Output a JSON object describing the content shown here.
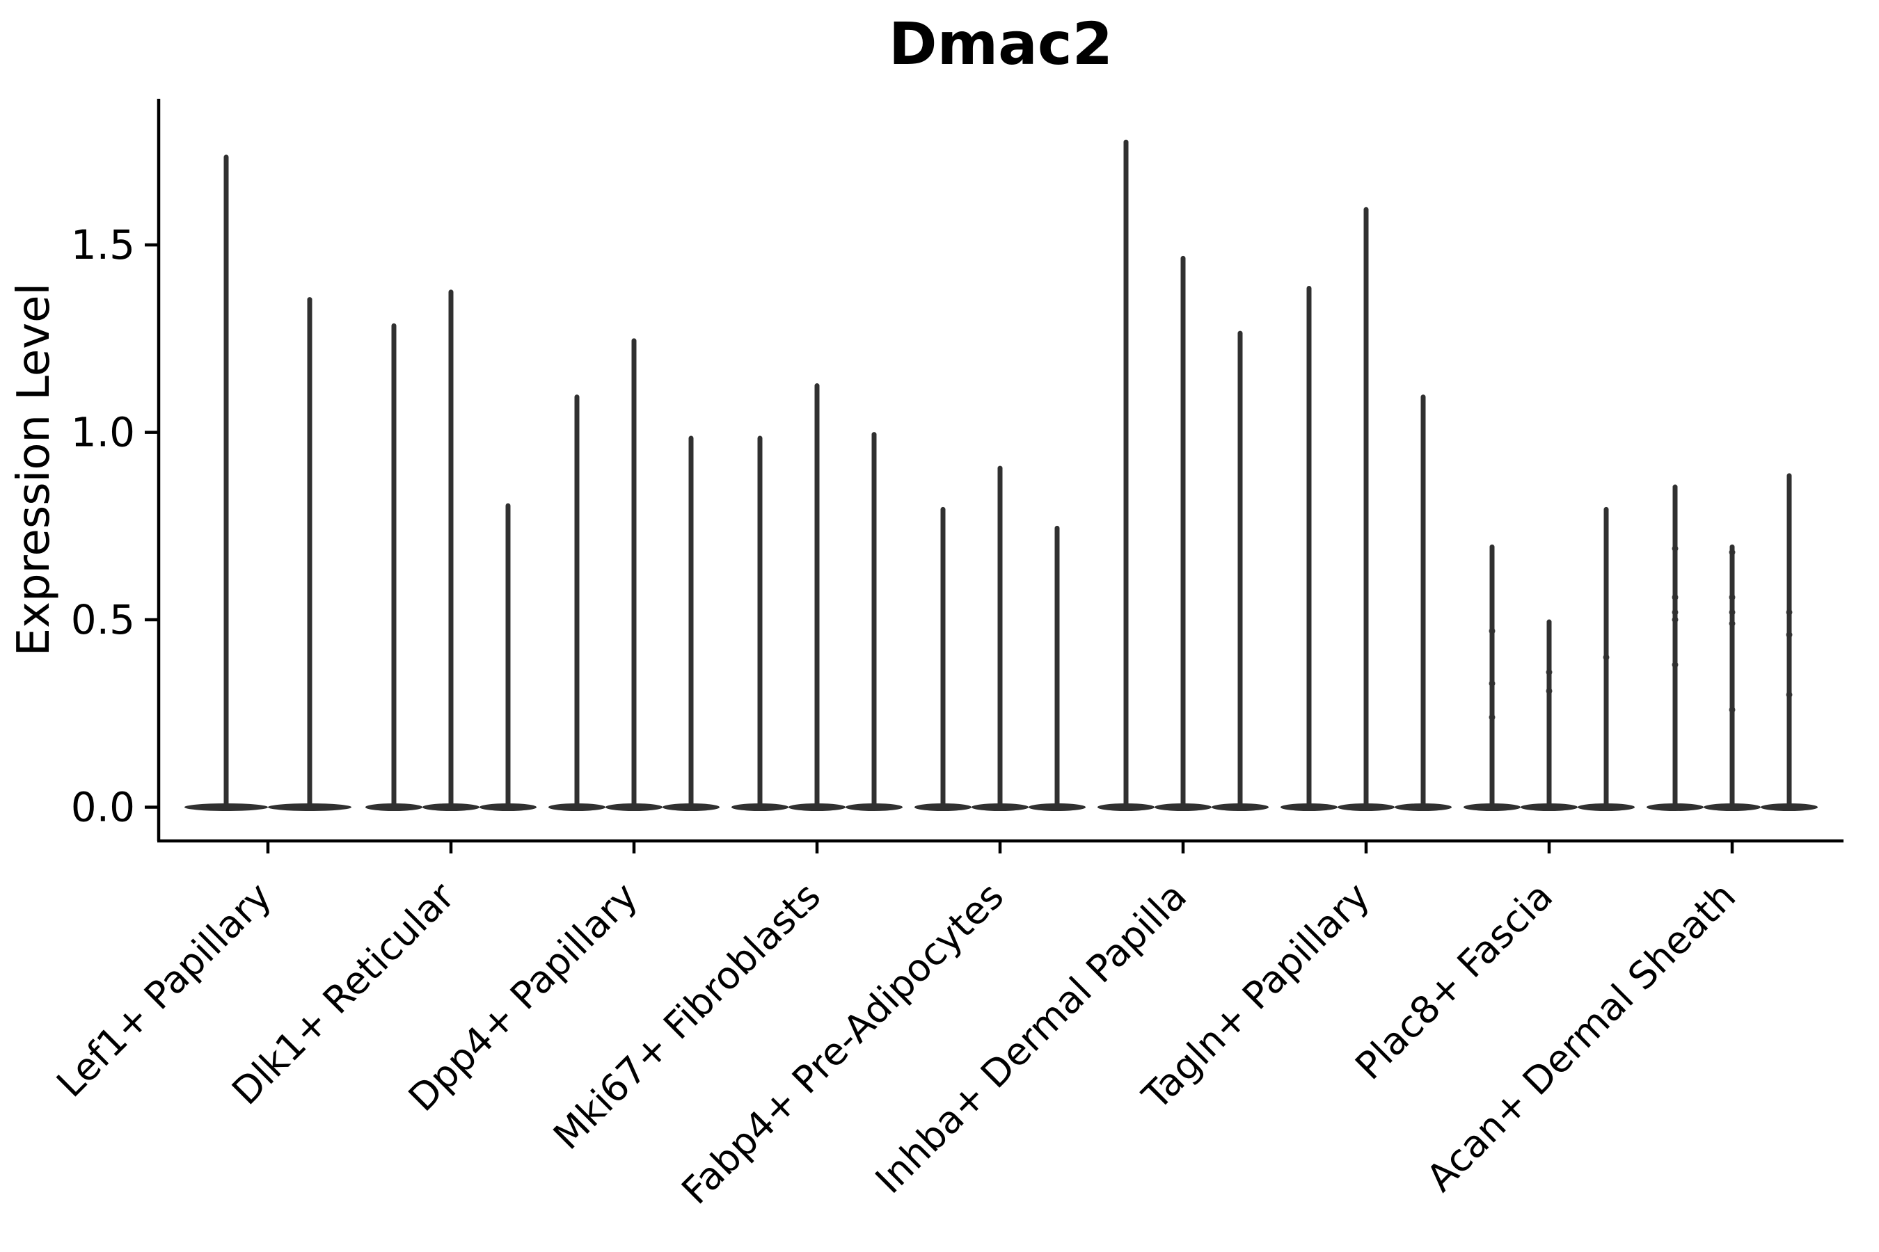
{
  "chart_data": {
    "type": "violin",
    "title": "Dmac2",
    "ylabel": "Expression Level",
    "xlabel": "",
    "grid": false,
    "legend": null,
    "ylim": [
      -0.09,
      1.89
    ],
    "yticks": [
      0.0,
      0.5,
      1.0,
      1.5
    ],
    "ytick_labels": [
      "0.0",
      "0.5",
      "1.0",
      "1.5"
    ],
    "colors": {
      "violin": "#303030",
      "axis": "#000000",
      "text": "#000000",
      "background": "#ffffff"
    },
    "categories": [
      "Lef1+ Papillary",
      "Dlk1+ Reticular",
      "Dpp4+ Papillary",
      "Mki67+ Fibroblasts",
      "Fabp4+ Pre-Adipocytes",
      "Inhba+ Dermal Papilla",
      "Tagln+ Papillary",
      "Plac8+ Fascia",
      "Acan+ Dermal Sheath"
    ],
    "series": [
      {
        "category": "Lef1+ Papillary",
        "violin_maxima": [
          1.74,
          1.36
        ],
        "dots": [
          [],
          []
        ]
      },
      {
        "category": "Dlk1+ Reticular",
        "violin_maxima": [
          1.29,
          1.38,
          0.81
        ],
        "dots": [
          [],
          [],
          []
        ]
      },
      {
        "category": "Dpp4+ Papillary",
        "violin_maxima": [
          1.1,
          1.25,
          0.99
        ],
        "dots": [
          [],
          [],
          []
        ]
      },
      {
        "category": "Mki67+ Fibroblasts",
        "violin_maxima": [
          0.99,
          1.13,
          1.0
        ],
        "dots": [
          [],
          [],
          []
        ]
      },
      {
        "category": "Fabp4+ Pre-Adipocytes",
        "violin_maxima": [
          0.8,
          0.91,
          0.75
        ],
        "dots": [
          [],
          [],
          []
        ]
      },
      {
        "category": "Inhba+ Dermal Papilla",
        "violin_maxima": [
          1.78,
          1.47,
          1.27
        ],
        "dots": [
          [],
          [],
          []
        ]
      },
      {
        "category": "Tagln+ Papillary",
        "violin_maxima": [
          1.39,
          1.6,
          1.1
        ],
        "dots": [
          [],
          [],
          []
        ]
      },
      {
        "category": "Plac8+ Fascia",
        "violin_maxima": [
          0.7,
          0.5,
          0.8
        ],
        "dots": [
          [
            0.47,
            0.33,
            0.24
          ],
          [
            0.36,
            0.31
          ],
          [
            0.4
          ]
        ]
      },
      {
        "category": "Acan+ Dermal Sheath",
        "violin_maxima": [
          0.86,
          0.7,
          0.89
        ],
        "dots": [
          [
            0.69,
            0.56,
            0.52,
            0.5,
            0.38
          ],
          [
            0.68,
            0.56,
            0.52,
            0.49,
            0.26
          ],
          [
            0.52,
            0.46,
            0.3
          ]
        ]
      }
    ],
    "note": "Each violin is a thin vertical density spike with virtually all mass at expression 0 (flat basal blob)."
  }
}
